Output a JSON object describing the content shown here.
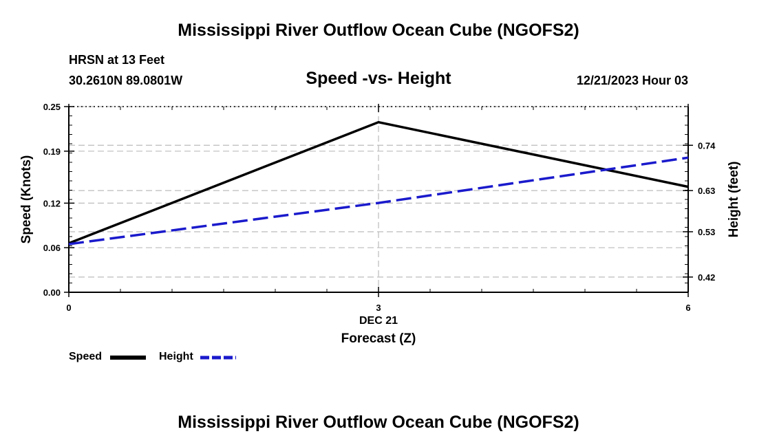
{
  "header": {
    "title": "Mississippi River Outflow Ocean Cube (NGOFS2)",
    "station": "HRSN at 13 Feet",
    "coords": "30.2610N  89.0801W",
    "date": "12/21/2023 Hour 03"
  },
  "footer": {
    "title": "Mississippi River Outflow Ocean Cube (NGOFS2)"
  },
  "legend": {
    "speed_label": "Speed",
    "height_label": "Height"
  },
  "colors": {
    "speed": "#000000",
    "height": "#1a1acc",
    "grid": "#bbbbbb"
  },
  "chart_data": {
    "type": "line",
    "title": "Speed -vs- Height",
    "xlabel": "Forecast (Z)",
    "x_sublabel": "DEC 21",
    "ylabel": "Speed (Knots)",
    "y2label": "Height (feet)",
    "x": [
      0,
      3,
      6
    ],
    "xticks": [
      0,
      3,
      6
    ],
    "xtick_labels": [
      "0",
      "3",
      "6"
    ],
    "xlim": [
      0,
      6
    ],
    "ylim": [
      0,
      0.25
    ],
    "yticks": [
      0.0,
      0.06,
      0.12,
      0.19,
      0.25
    ],
    "ytick_labels": [
      "0.00",
      "0.06",
      "0.12",
      "0.19",
      "0.25"
    ],
    "y2lim": [
      0.383,
      0.834
    ],
    "y2ticks": [
      0.42,
      0.53,
      0.63,
      0.74
    ],
    "y2tick_labels": [
      "0.42",
      "0.53",
      "0.63",
      "0.74"
    ],
    "grid": true,
    "series": [
      {
        "name": "Speed",
        "axis": "left",
        "style": "solid",
        "values": [
          0.066,
          0.229,
          0.142
        ]
      },
      {
        "name": "Height",
        "axis": "right",
        "style": "dashed",
        "values": [
          0.5,
          0.6,
          0.71
        ]
      }
    ]
  }
}
